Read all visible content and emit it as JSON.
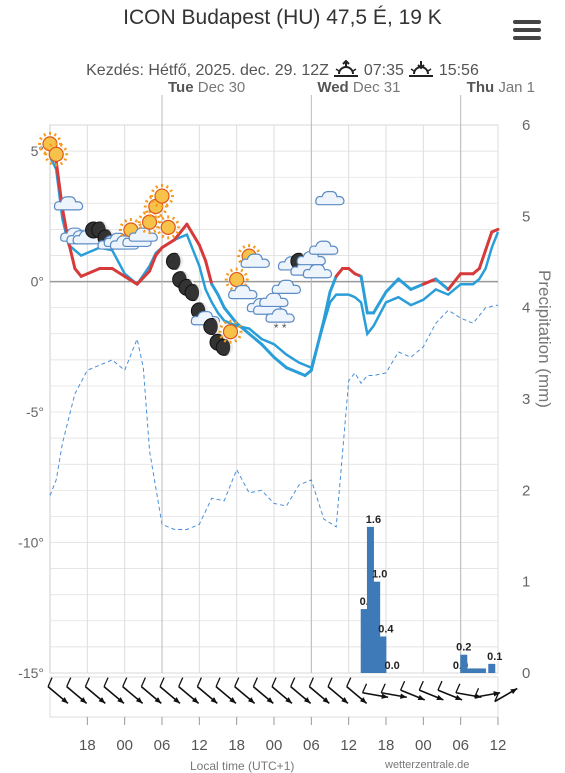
{
  "header": {
    "title": "ICON Budapest (HU) 47,5 É, 19 K",
    "start": "Kezdés: Hétfő, 2025. dec. 29. 12Z",
    "sunrise": "07:35",
    "sunset": "15:56",
    "menu_icon": "hamburger-menu-icon"
  },
  "footer": {
    "left": "Local time (UTC+1)",
    "right": "wetterzentrale.de"
  },
  "colors": {
    "temp_warm": "#d63a3a",
    "temp_cold": "#2a9ed8",
    "dewpoint": "#4a90d9",
    "precip": "#3e7ab8",
    "grid": "#dddddd"
  },
  "chart_data": {
    "type": "line",
    "day_labels": [
      {
        "day": "Tue",
        "date": "Dec 30",
        "hour": 18
      },
      {
        "day": "Wed",
        "date": "Dec 31",
        "hour": 42
      },
      {
        "day": "Thu",
        "date": "Jan 1",
        "hour": 66
      }
    ],
    "x_ticks": [
      {
        "hour": 6,
        "label": "18"
      },
      {
        "hour": 12,
        "label": "00"
      },
      {
        "hour": 18,
        "label": "06"
      },
      {
        "hour": 24,
        "label": "12"
      },
      {
        "hour": 30,
        "label": "18"
      },
      {
        "hour": 36,
        "label": "00"
      },
      {
        "hour": 42,
        "label": "06"
      },
      {
        "hour": 48,
        "label": "12"
      },
      {
        "hour": 54,
        "label": "18"
      },
      {
        "hour": 60,
        "label": "00"
      },
      {
        "hour": 66,
        "label": "06"
      },
      {
        "hour": 72,
        "label": "12"
      }
    ],
    "x_range_hours": [
      0,
      72
    ],
    "y_left": {
      "range": [
        -15,
        6
      ],
      "ticks": [
        5,
        0,
        -5,
        -10,
        -15
      ],
      "tick_suffix": "°"
    },
    "y_right": {
      "label": "Precipitation (mm)",
      "range": [
        0,
        6
      ],
      "ticks": [
        0,
        1,
        2,
        3,
        4,
        5,
        6
      ]
    },
    "temperature": {
      "hours": [
        0,
        1,
        2,
        3,
        4,
        5,
        6,
        8,
        10,
        12,
        14,
        16,
        17,
        18,
        20,
        22,
        24,
        25,
        26,
        27,
        28,
        30,
        32,
        34,
        36,
        38,
        40,
        41,
        42,
        44,
        45,
        46,
        47,
        48,
        49,
        50,
        51,
        52,
        54,
        56,
        58,
        60,
        62,
        64,
        66,
        68,
        69,
        70,
        71,
        72
      ],
      "values": [
        5.3,
        4.6,
        2.8,
        1.5,
        0.5,
        0.2,
        0.3,
        0.5,
        0.5,
        0.2,
        -0.1,
        0.4,
        1.0,
        1.3,
        1.6,
        2.2,
        1.4,
        0.8,
        -0.1,
        -0.5,
        -1.0,
        -1.6,
        -2.0,
        -2.4,
        -2.9,
        -3.3,
        -3.5,
        -3.6,
        -3.4,
        -1.5,
        -0.4,
        0.2,
        0.5,
        0.5,
        0.3,
        0.2,
        -1.2,
        -1.2,
        -0.4,
        0.1,
        -0.3,
        -0.1,
        0.1,
        -0.3,
        0.3,
        0.3,
        0.5,
        1.2,
        1.9,
        2.0
      ]
    },
    "dewpoint": {
      "hours": [
        0,
        1,
        2,
        3,
        4,
        5,
        6,
        8,
        10,
        12,
        14,
        16,
        17,
        18,
        20,
        22,
        24,
        25,
        26,
        27,
        28,
        30,
        32,
        34,
        36,
        38,
        40,
        41,
        42,
        44,
        45,
        46,
        47,
        48,
        49,
        50,
        51,
        52,
        54,
        56,
        58,
        60,
        62,
        64,
        66,
        68,
        69,
        70,
        71,
        72
      ],
      "values": [
        4.8,
        4.3,
        2.4,
        1.4,
        1.2,
        1.0,
        1.1,
        1.3,
        1.2,
        0.3,
        -0.1,
        0.6,
        1.1,
        1.3,
        1.6,
        1.8,
        0.6,
        -0.3,
        -0.8,
        -1.2,
        -1.5,
        -1.7,
        -1.8,
        -2.2,
        -2.4,
        -2.8,
        -3.1,
        -3.2,
        -3.3,
        -1.6,
        -0.8,
        -0.5,
        -0.5,
        -0.5,
        -0.6,
        -0.8,
        -2.0,
        -1.7,
        -0.8,
        -0.6,
        -0.9,
        -0.7,
        -0.3,
        -0.5,
        -0.1,
        -0.1,
        0.1,
        0.5,
        1.3,
        1.9
      ]
    },
    "temp_850": {
      "hours": [
        0,
        1,
        2,
        4,
        6,
        8,
        10,
        12,
        14,
        15,
        16,
        18,
        20,
        22,
        24,
        26,
        28,
        30,
        32,
        34,
        36,
        38,
        40,
        42,
        44,
        46,
        48,
        49,
        50,
        51,
        52,
        54,
        56,
        58,
        60,
        62,
        64,
        66,
        68,
        70,
        72
      ],
      "values": [
        -8.2,
        -7.6,
        -6.2,
        -4.3,
        -3.4,
        -3.2,
        -3.0,
        -3.4,
        -2.2,
        -3.3,
        -6.5,
        -9.3,
        -9.5,
        -9.5,
        -9.3,
        -8.3,
        -8.4,
        -7.2,
        -8.1,
        -8.0,
        -8.5,
        -8.6,
        -7.8,
        -7.6,
        -9.1,
        -9.4,
        -3.8,
        -3.5,
        -3.9,
        -3.6,
        -3.6,
        -3.5,
        -2.7,
        -2.9,
        -2.5,
        -1.6,
        -1.1,
        -1.4,
        -1.6,
        -1.0,
        -0.9
      ]
    },
    "precipitation": {
      "bars": [
        {
          "hour": 50.5,
          "mm": 0.7,
          "label": "0.7"
        },
        {
          "hour": 51.5,
          "mm": 1.6,
          "label": "1.6"
        },
        {
          "hour": 52.5,
          "mm": 1.0,
          "label": "1.0"
        },
        {
          "hour": 53.5,
          "mm": 0.4,
          "label": "0.4"
        },
        {
          "hour": 54.5,
          "mm": 0.0,
          "label": "0.0"
        },
        {
          "hour": 65.5,
          "mm": 0.0,
          "label": "0.0"
        },
        {
          "hour": 66.5,
          "mm": 0.2,
          "label": "0.2"
        },
        {
          "hour": 67.5,
          "mm": 0.05,
          "label": ""
        },
        {
          "hour": 68.5,
          "mm": 0.05,
          "label": ""
        },
        {
          "hour": 69.5,
          "mm": 0.05,
          "label": ""
        },
        {
          "hour": 71.0,
          "mm": 0.1,
          "label": "0.1"
        }
      ]
    },
    "weather_icons": [
      {
        "hour": 0,
        "temp": 5.2,
        "type": "sun"
      },
      {
        "hour": 1,
        "temp": 4.8,
        "type": "sun"
      },
      {
        "hour": 3,
        "temp": 2.9,
        "type": "cloud"
      },
      {
        "hour": 4,
        "temp": 1.7,
        "type": "cloud"
      },
      {
        "hour": 5,
        "temp": 1.6,
        "type": "cloud"
      },
      {
        "hour": 6,
        "temp": 1.6,
        "type": "cloud"
      },
      {
        "hour": 7,
        "temp": 1.9,
        "type": "moon"
      },
      {
        "hour": 8,
        "temp": 1.9,
        "type": "moon"
      },
      {
        "hour": 9,
        "temp": 1.6,
        "type": "moon"
      },
      {
        "hour": 10,
        "temp": 1.4,
        "type": "cloud"
      },
      {
        "hour": 11,
        "temp": 1.5,
        "type": "cloud"
      },
      {
        "hour": 12,
        "temp": 1.4,
        "type": "cloud"
      },
      {
        "hour": 13,
        "temp": 1.9,
        "type": "sun"
      },
      {
        "hour": 14,
        "temp": 1.5,
        "type": "cloud"
      },
      {
        "hour": 15,
        "temp": 1.7,
        "type": "cloud"
      },
      {
        "hour": 16,
        "temp": 2.2,
        "type": "sun"
      },
      {
        "hour": 17,
        "temp": 2.8,
        "type": "sun"
      },
      {
        "hour": 18,
        "temp": 3.2,
        "type": "sun"
      },
      {
        "hour": 19,
        "temp": 2.0,
        "type": "sun"
      },
      {
        "hour": 20,
        "temp": 0.7,
        "type": "moon"
      },
      {
        "hour": 21,
        "temp": 0.0,
        "type": "moon"
      },
      {
        "hour": 22,
        "temp": -0.3,
        "type": "moon"
      },
      {
        "hour": 23,
        "temp": -0.5,
        "type": "moon"
      },
      {
        "hour": 24,
        "temp": -1.2,
        "type": "moon"
      },
      {
        "hour": 25,
        "temp": -1.5,
        "type": "cloud"
      },
      {
        "hour": 26,
        "temp": -1.8,
        "type": "moon"
      },
      {
        "hour": 27,
        "temp": -2.4,
        "type": "moon"
      },
      {
        "hour": 28,
        "temp": -2.6,
        "type": "moon"
      },
      {
        "hour": 29,
        "temp": -2.0,
        "type": "sun"
      },
      {
        "hour": 30,
        "temp": 0.0,
        "type": "sun"
      },
      {
        "hour": 31,
        "temp": -0.5,
        "type": "cloud"
      },
      {
        "hour": 32,
        "temp": 0.9,
        "type": "sun"
      },
      {
        "hour": 33,
        "temp": 0.7,
        "type": "cloud"
      },
      {
        "hour": 34,
        "temp": -1.0,
        "type": "cloud"
      },
      {
        "hour": 35,
        "temp": -1.1,
        "type": "cloud"
      },
      {
        "hour": 36,
        "temp": -0.8,
        "type": "cloud"
      },
      {
        "hour": 37,
        "temp": -1.4,
        "type": "snow"
      },
      {
        "hour": 38,
        "temp": -0.3,
        "type": "cloud"
      },
      {
        "hour": 39,
        "temp": 0.6,
        "type": "cloud"
      },
      {
        "hour": 40,
        "temp": 0.7,
        "type": "moon"
      },
      {
        "hour": 41,
        "temp": 0.4,
        "type": "cloud"
      },
      {
        "hour": 42,
        "temp": 0.8,
        "type": "cloud"
      },
      {
        "hour": 43,
        "temp": 0.3,
        "type": "cloud"
      },
      {
        "hour": 44,
        "temp": 1.2,
        "type": "cloud"
      },
      {
        "hour": 45,
        "temp": 3.1,
        "type": "cloud"
      }
    ],
    "wind_arrows": [
      {
        "hour": 0,
        "dir": "NW"
      },
      {
        "hour": 3,
        "dir": "NW"
      },
      {
        "hour": 6,
        "dir": "NW"
      },
      {
        "hour": 9,
        "dir": "NW"
      },
      {
        "hour": 12,
        "dir": "NW"
      },
      {
        "hour": 15,
        "dir": "NW"
      },
      {
        "hour": 18,
        "dir": "NW"
      },
      {
        "hour": 21,
        "dir": "NW"
      },
      {
        "hour": 24,
        "dir": "NW"
      },
      {
        "hour": 27,
        "dir": "NW"
      },
      {
        "hour": 30,
        "dir": "NW"
      },
      {
        "hour": 33,
        "dir": "NW"
      },
      {
        "hour": 36,
        "dir": "NW"
      },
      {
        "hour": 39,
        "dir": "NW"
      },
      {
        "hour": 42,
        "dir": "NW"
      },
      {
        "hour": 45,
        "dir": "NW"
      },
      {
        "hour": 48,
        "dir": "NW"
      },
      {
        "hour": 51,
        "dir": "W"
      },
      {
        "hour": 54,
        "dir": "W"
      },
      {
        "hour": 57,
        "dir": "WNW"
      },
      {
        "hour": 60,
        "dir": "WNW"
      },
      {
        "hour": 63,
        "dir": "WNW"
      },
      {
        "hour": 66,
        "dir": "W"
      },
      {
        "hour": 69,
        "dir": "WSW"
      },
      {
        "hour": 72,
        "dir": "SW"
      }
    ]
  }
}
